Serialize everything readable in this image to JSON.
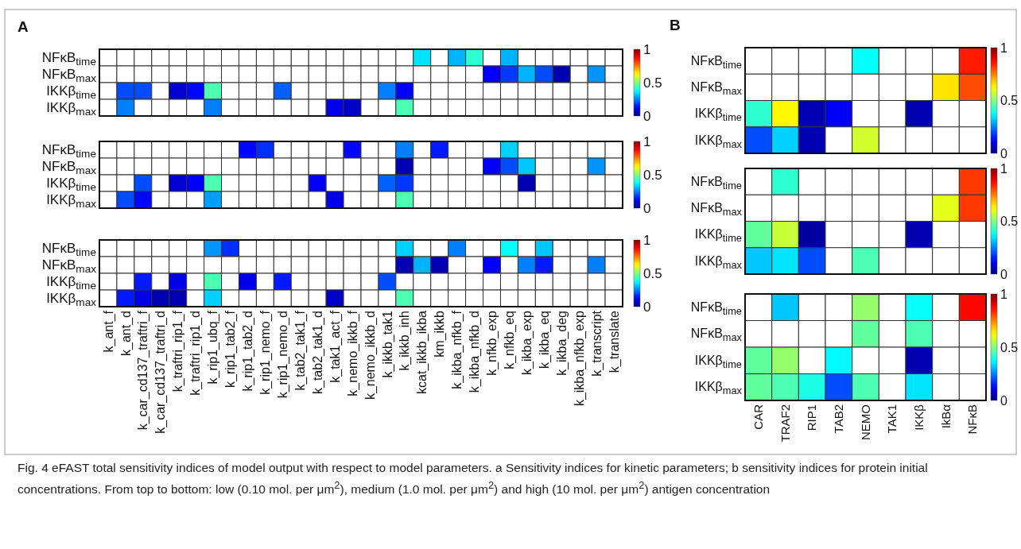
{
  "chart_data": [
    {
      "type": "heatmap",
      "annotations": [
        "A",
        "Fig. 4  eFAST total sensitivity indices of model output with respect to model parameters. a Sensitivity indices for kinetic parameters; b sensitivity indices for protein initial concentrations. From top to bottom: low (0.10 mol. per μm$^{2}$), medium (1.0 mol. per μm$^{2}$) and high (10 mol. per μm$^{2}$) antigen concentration"
      ],
      "tick_labels": "y",
      "categories": [
        null,
        null,
        null,
        null,
        null,
        null,
        null,
        null,
        null,
        null,
        null,
        null,
        null,
        null,
        null,
        null,
        null,
        null,
        null,
        null,
        null,
        null,
        null,
        null,
        null,
        null,
        null,
        null,
        null,
        null
      ],
      "y_categories": [
        "NFκB$_{time}$",
        "NFκB$_{max}$",
        "IKKβ$_{time}$",
        "IKKβ$_{max}$"
      ],
      "cells": [
        [
          null,
          null,
          null,
          null,
          null,
          null,
          null,
          null,
          null,
          null,
          null,
          null,
          null,
          null,
          null,
          null,
          null,
          null,
          0.35,
          null,
          0.3,
          0.42,
          null,
          0.3,
          null,
          null,
          null,
          null,
          null,
          null
        ],
        [
          null,
          null,
          null,
          null,
          null,
          null,
          null,
          null,
          null,
          null,
          null,
          null,
          null,
          null,
          null,
          null,
          null,
          null,
          null,
          null,
          null,
          null,
          0.12,
          0.18,
          0.3,
          0.2,
          0.05,
          null,
          0.27,
          null
        ],
        [
          null,
          0.2,
          0.2,
          null,
          0.08,
          0.13,
          0.45,
          null,
          null,
          null,
          0.22,
          null,
          null,
          null,
          null,
          null,
          0.25,
          0.12,
          null,
          null,
          null,
          null,
          null,
          null,
          null,
          null,
          null,
          null,
          null,
          null
        ],
        [
          null,
          0.25,
          null,
          null,
          null,
          null,
          0.25,
          null,
          null,
          null,
          null,
          null,
          null,
          0.1,
          0.07,
          null,
          null,
          0.45,
          null,
          null,
          null,
          null,
          null,
          null,
          null,
          null,
          null,
          null,
          null,
          null
        ]
      ],
      "clim": [
        0,
        1
      ],
      "cticks": [
        0,
        0.5,
        1
      ]
    },
    {
      "type": "heatmap",
      "tick_labels": "y",
      "categories": [
        null,
        null,
        null,
        null,
        null,
        null,
        null,
        null,
        null,
        null,
        null,
        null,
        null,
        null,
        null,
        null,
        null,
        null,
        null,
        null,
        null,
        null,
        null,
        null,
        null,
        null,
        null,
        null,
        null,
        null
      ],
      "y_categories": [
        "NFκB$_{time}$",
        "NFκB$_{max}$",
        "IKKβ$_{time}$",
        "IKKβ$_{max}$"
      ],
      "cells": [
        [
          null,
          null,
          null,
          null,
          null,
          null,
          null,
          null,
          0.13,
          0.17,
          null,
          null,
          null,
          null,
          0.13,
          null,
          null,
          0.25,
          null,
          0.15,
          null,
          null,
          null,
          0.33,
          null,
          null,
          null,
          null,
          null,
          null
        ],
        [
          null,
          null,
          null,
          null,
          null,
          null,
          null,
          null,
          null,
          null,
          null,
          null,
          null,
          null,
          null,
          null,
          null,
          0.05,
          null,
          null,
          null,
          null,
          0.12,
          0.2,
          0.32,
          null,
          null,
          null,
          0.27,
          null
        ],
        [
          null,
          null,
          0.2,
          null,
          0.08,
          0.12,
          0.45,
          null,
          null,
          null,
          null,
          null,
          0.12,
          null,
          null,
          null,
          0.22,
          0.18,
          null,
          null,
          null,
          null,
          null,
          null,
          0.05,
          null,
          null,
          null,
          null,
          null
        ],
        [
          null,
          0.2,
          0.13,
          null,
          null,
          null,
          0.28,
          null,
          null,
          null,
          null,
          null,
          null,
          0.1,
          null,
          null,
          null,
          0.45,
          null,
          null,
          null,
          null,
          null,
          null,
          null,
          null,
          null,
          null,
          null,
          null
        ]
      ],
      "clim": [
        0,
        1
      ],
      "cticks": [
        0,
        0.5,
        1
      ]
    },
    {
      "type": "heatmap",
      "categories": [
        "k_ant_f",
        "k_ant_d",
        "k_car_cd137_traftri_f",
        "k_car_cd137_traftri_d",
        "k_traftri_rip1_f",
        "k_traftri_rip1_d",
        "k_rip1_ubq_f",
        "k_rip1_tab2_f",
        "k_rip1_tab2_d",
        "k_rip1_nemo_f",
        "k_rip1_nemo_d",
        "k_tab2_tak1_f",
        "k_tab2_tak1_d",
        "k_tak1_act_f",
        "k_nemo_ikkb_f",
        "k_nemo_ikkb_d",
        "k_ikkb_tak1",
        "k_ikkb_inh",
        "kcat_ikkb_ikba",
        "km_ikkb",
        "k_ikba_nfkb_f",
        "k_ikba_nfkb_d",
        "k_nfkb_exp",
        "k_nfkb_eq",
        "k_ikba_exp",
        "k_ikba_eq",
        "k_ikba_deg",
        "k_ikba_nfkb_exp",
        "k_transcript",
        "k_translate"
      ],
      "y_categories": [
        "NFκB$_{time}$",
        "NFκB$_{max}$",
        "IKKβ$_{time}$",
        "IKKβ$_{max}$"
      ],
      "cells": [
        [
          null,
          null,
          null,
          null,
          null,
          null,
          0.27,
          0.17,
          null,
          null,
          null,
          null,
          null,
          null,
          null,
          null,
          null,
          0.33,
          null,
          null,
          0.25,
          null,
          null,
          0.38,
          null,
          0.32,
          null,
          null,
          null,
          null
        ],
        [
          null,
          null,
          null,
          null,
          null,
          null,
          null,
          null,
          null,
          null,
          null,
          null,
          null,
          null,
          null,
          null,
          null,
          0.05,
          0.3,
          0.05,
          null,
          null,
          0.12,
          null,
          0.25,
          0.15,
          null,
          null,
          0.25,
          null
        ],
        [
          null,
          null,
          0.15,
          null,
          0.1,
          null,
          0.45,
          null,
          0.1,
          null,
          0.15,
          null,
          null,
          null,
          null,
          null,
          0.2,
          null,
          null,
          null,
          null,
          null,
          null,
          null,
          null,
          null,
          null,
          null,
          null,
          null
        ],
        [
          null,
          0.15,
          0.1,
          0.05,
          0.05,
          null,
          0.33,
          null,
          null,
          null,
          null,
          null,
          null,
          0.07,
          null,
          null,
          null,
          0.45,
          null,
          null,
          null,
          null,
          null,
          null,
          null,
          null,
          null,
          null,
          null,
          null
        ]
      ],
      "clim": [
        0,
        1
      ],
      "cticks": [
        0,
        0.5,
        1
      ]
    },
    {
      "type": "heatmap",
      "annotations": [
        "B"
      ],
      "tick_labels": "y",
      "categories": [
        null,
        null,
        null,
        null,
        null,
        null,
        null,
        null,
        null
      ],
      "y_categories": [
        "NFκB$_{time}$",
        "NFκB$_{max}$",
        "IKKβ$_{time}$",
        "IKKβ$_{max}$"
      ],
      "cells": [
        [
          null,
          null,
          null,
          null,
          0.38,
          null,
          null,
          null,
          0.85
        ],
        [
          null,
          null,
          null,
          null,
          null,
          null,
          null,
          0.65,
          0.8
        ],
        [
          0.42,
          0.63,
          0.05,
          0.12,
          null,
          null,
          0.05,
          null,
          null
        ],
        [
          0.2,
          0.33,
          0.05,
          null,
          0.58,
          null,
          null,
          null,
          null
        ]
      ],
      "clim": [
        0,
        1
      ],
      "cticks": [
        0,
        0.5,
        1
      ]
    },
    {
      "type": "heatmap",
      "tick_labels": "y",
      "categories": [
        null,
        null,
        null,
        null,
        null,
        null,
        null,
        null,
        null
      ],
      "y_categories": [
        "NFκB$_{time}$",
        "NFκB$_{max}$",
        "IKKβ$_{time}$",
        "IKKβ$_{max}$"
      ],
      "cells": [
        [
          null,
          0.42,
          null,
          null,
          null,
          null,
          null,
          null,
          0.82
        ],
        [
          null,
          null,
          null,
          null,
          null,
          null,
          null,
          0.6,
          0.82
        ],
        [
          0.47,
          0.57,
          0.03,
          null,
          null,
          null,
          0.05,
          null,
          null
        ],
        [
          0.32,
          0.35,
          0.2,
          null,
          0.45,
          null,
          null,
          null,
          null
        ]
      ],
      "clim": [
        0,
        1
      ],
      "cticks": [
        0,
        0.5,
        1
      ]
    },
    {
      "type": "heatmap",
      "categories": [
        "CAR",
        "TRAF2",
        "RIP1",
        "TAB2",
        "NEMO",
        "TAK1",
        "IKKβ",
        "IkBα",
        "NFκB"
      ],
      "y_categories": [
        "NFκB$_{time}$",
        "NFκB$_{max}$",
        "IKKβ$_{time}$",
        "IKKβ$_{max}$"
      ],
      "cells": [
        [
          null,
          0.32,
          null,
          null,
          0.52,
          null,
          0.38,
          null,
          0.87
        ],
        [
          null,
          null,
          null,
          null,
          0.47,
          null,
          0.45,
          null,
          null
        ],
        [
          0.47,
          0.52,
          null,
          0.37,
          null,
          null,
          0.05,
          null,
          null
        ],
        [
          0.47,
          0.45,
          0.4,
          0.2,
          0.45,
          null,
          0.35,
          null,
          null
        ]
      ],
      "clim": [
        0,
        1
      ],
      "cticks": [
        0,
        0.5,
        1
      ]
    }
  ]
}
